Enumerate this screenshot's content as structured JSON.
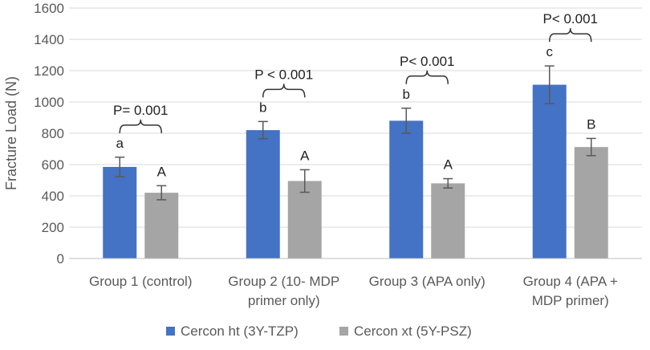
{
  "chart_data": {
    "type": "bar",
    "title": "",
    "xlabel": "",
    "ylabel": "Fracture Load (N)",
    "ylim": [
      0,
      1600
    ],
    "yticks": [
      0,
      200,
      400,
      600,
      800,
      1000,
      1200,
      1400,
      1600
    ],
    "grid": true,
    "legend_position": "bottom",
    "categories": [
      [
        "Group 1 (control)"
      ],
      [
        "Group 2 (10- MDP",
        "primer only)"
      ],
      [
        "Group 3 (APA only)"
      ],
      [
        "Group 4 (APA +",
        "MDP primer)"
      ]
    ],
    "series": [
      {
        "name": "Cercon ht (3Y-TZP)",
        "color": "#4472C4",
        "values": [
          585,
          820,
          880,
          1110
        ],
        "errors": [
          62,
          55,
          80,
          120
        ],
        "labels": [
          "a",
          "b",
          "b",
          "c"
        ]
      },
      {
        "name": "Cercon xt (5Y-PSZ)",
        "color": "#A5A5A5",
        "values": [
          420,
          495,
          480,
          712
        ],
        "errors": [
          45,
          72,
          30,
          55
        ],
        "labels": [
          "A",
          "A",
          "A",
          "B"
        ]
      }
    ],
    "p_values": [
      "P= 0.001",
      "P < 0.001",
      "P< 0.001",
      "P< 0.001"
    ]
  }
}
